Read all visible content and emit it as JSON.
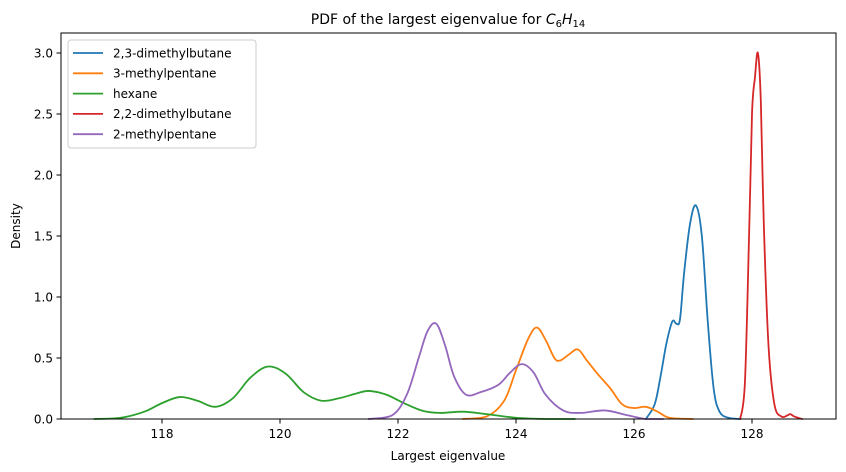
{
  "chart_data": {
    "type": "line",
    "title": "PDF of the largest eigenvalue for C6H14",
    "title_parts": {
      "prefix": "PDF of the largest eigenvalue for ",
      "c": "C",
      "c_sub": "6",
      "h": "H",
      "h_sub": "14"
    },
    "xlabel": "Largest eigenvalue",
    "ylabel": "Density",
    "xlim": [
      116.3,
      129.4
    ],
    "ylim": [
      0,
      3.15
    ],
    "xticks": [
      118,
      120,
      122,
      124,
      126,
      128
    ],
    "yticks": [
      0.0,
      0.5,
      1.0,
      1.5,
      2.0,
      2.5,
      3.0
    ],
    "xtick_labels": [
      "118",
      "120",
      "122",
      "124",
      "126",
      "128"
    ],
    "ytick_labels": [
      "0.0",
      "0.5",
      "1.0",
      "1.5",
      "2.0",
      "2.5",
      "3.0"
    ],
    "grid": false,
    "legend_position": "upper left",
    "series": [
      {
        "name": "2,3-dimethylbutane",
        "color": "#1f77b4",
        "x": [
          126.2,
          126.35,
          126.45,
          126.55,
          126.65,
          126.72,
          126.78,
          126.85,
          126.95,
          127.05,
          127.15,
          127.25,
          127.35,
          127.45,
          127.6,
          127.8
        ],
        "y": [
          0.0,
          0.12,
          0.35,
          0.62,
          0.8,
          0.78,
          0.82,
          1.2,
          1.6,
          1.75,
          1.5,
          0.8,
          0.25,
          0.06,
          0.01,
          0.0
        ]
      },
      {
        "name": "3-methylpentane",
        "color": "#ff7f0e",
        "x": [
          123.1,
          123.5,
          123.8,
          124.0,
          124.2,
          124.35,
          124.5,
          124.65,
          124.75,
          124.9,
          125.05,
          125.2,
          125.4,
          125.6,
          125.8,
          126.0,
          126.2,
          126.4,
          126.6,
          127.0
        ],
        "y": [
          0.0,
          0.02,
          0.15,
          0.4,
          0.65,
          0.75,
          0.65,
          0.5,
          0.48,
          0.53,
          0.57,
          0.48,
          0.36,
          0.25,
          0.12,
          0.09,
          0.1,
          0.06,
          0.01,
          0.0
        ]
      },
      {
        "name": "hexane",
        "color": "#2ca02c",
        "x": [
          116.85,
          117.3,
          117.7,
          118.0,
          118.3,
          118.6,
          118.9,
          119.2,
          119.5,
          119.8,
          120.1,
          120.4,
          120.7,
          121.0,
          121.3,
          121.5,
          121.8,
          122.1,
          122.4,
          122.7,
          123.1,
          123.5,
          124.0,
          124.5,
          125.0
        ],
        "y": [
          0.0,
          0.01,
          0.06,
          0.13,
          0.18,
          0.15,
          0.1,
          0.17,
          0.34,
          0.43,
          0.37,
          0.22,
          0.15,
          0.17,
          0.21,
          0.23,
          0.2,
          0.13,
          0.07,
          0.05,
          0.06,
          0.04,
          0.01,
          0.0,
          0.0
        ]
      },
      {
        "name": "2,2-dimethylbutane",
        "color": "#d62728",
        "x": [
          127.8,
          127.88,
          127.95,
          128.0,
          128.05,
          128.1,
          128.15,
          128.2,
          128.28,
          128.38,
          128.5,
          128.6,
          128.65,
          128.72,
          128.85
        ],
        "y": [
          0.0,
          0.3,
          1.5,
          2.5,
          2.8,
          3.0,
          2.6,
          1.6,
          0.6,
          0.12,
          0.02,
          0.03,
          0.04,
          0.02,
          0.0
        ]
      },
      {
        "name": "2-methylpentane",
        "color": "#9467bd",
        "x": [
          121.5,
          121.9,
          122.15,
          122.35,
          122.5,
          122.65,
          122.8,
          122.95,
          123.15,
          123.4,
          123.7,
          123.9,
          124.1,
          124.3,
          124.5,
          124.8,
          125.1,
          125.5,
          125.9,
          126.2,
          126.5
        ],
        "y": [
          0.0,
          0.03,
          0.2,
          0.5,
          0.72,
          0.78,
          0.6,
          0.35,
          0.2,
          0.22,
          0.28,
          0.38,
          0.45,
          0.38,
          0.2,
          0.07,
          0.05,
          0.07,
          0.03,
          0.0,
          0.0
        ]
      }
    ]
  }
}
